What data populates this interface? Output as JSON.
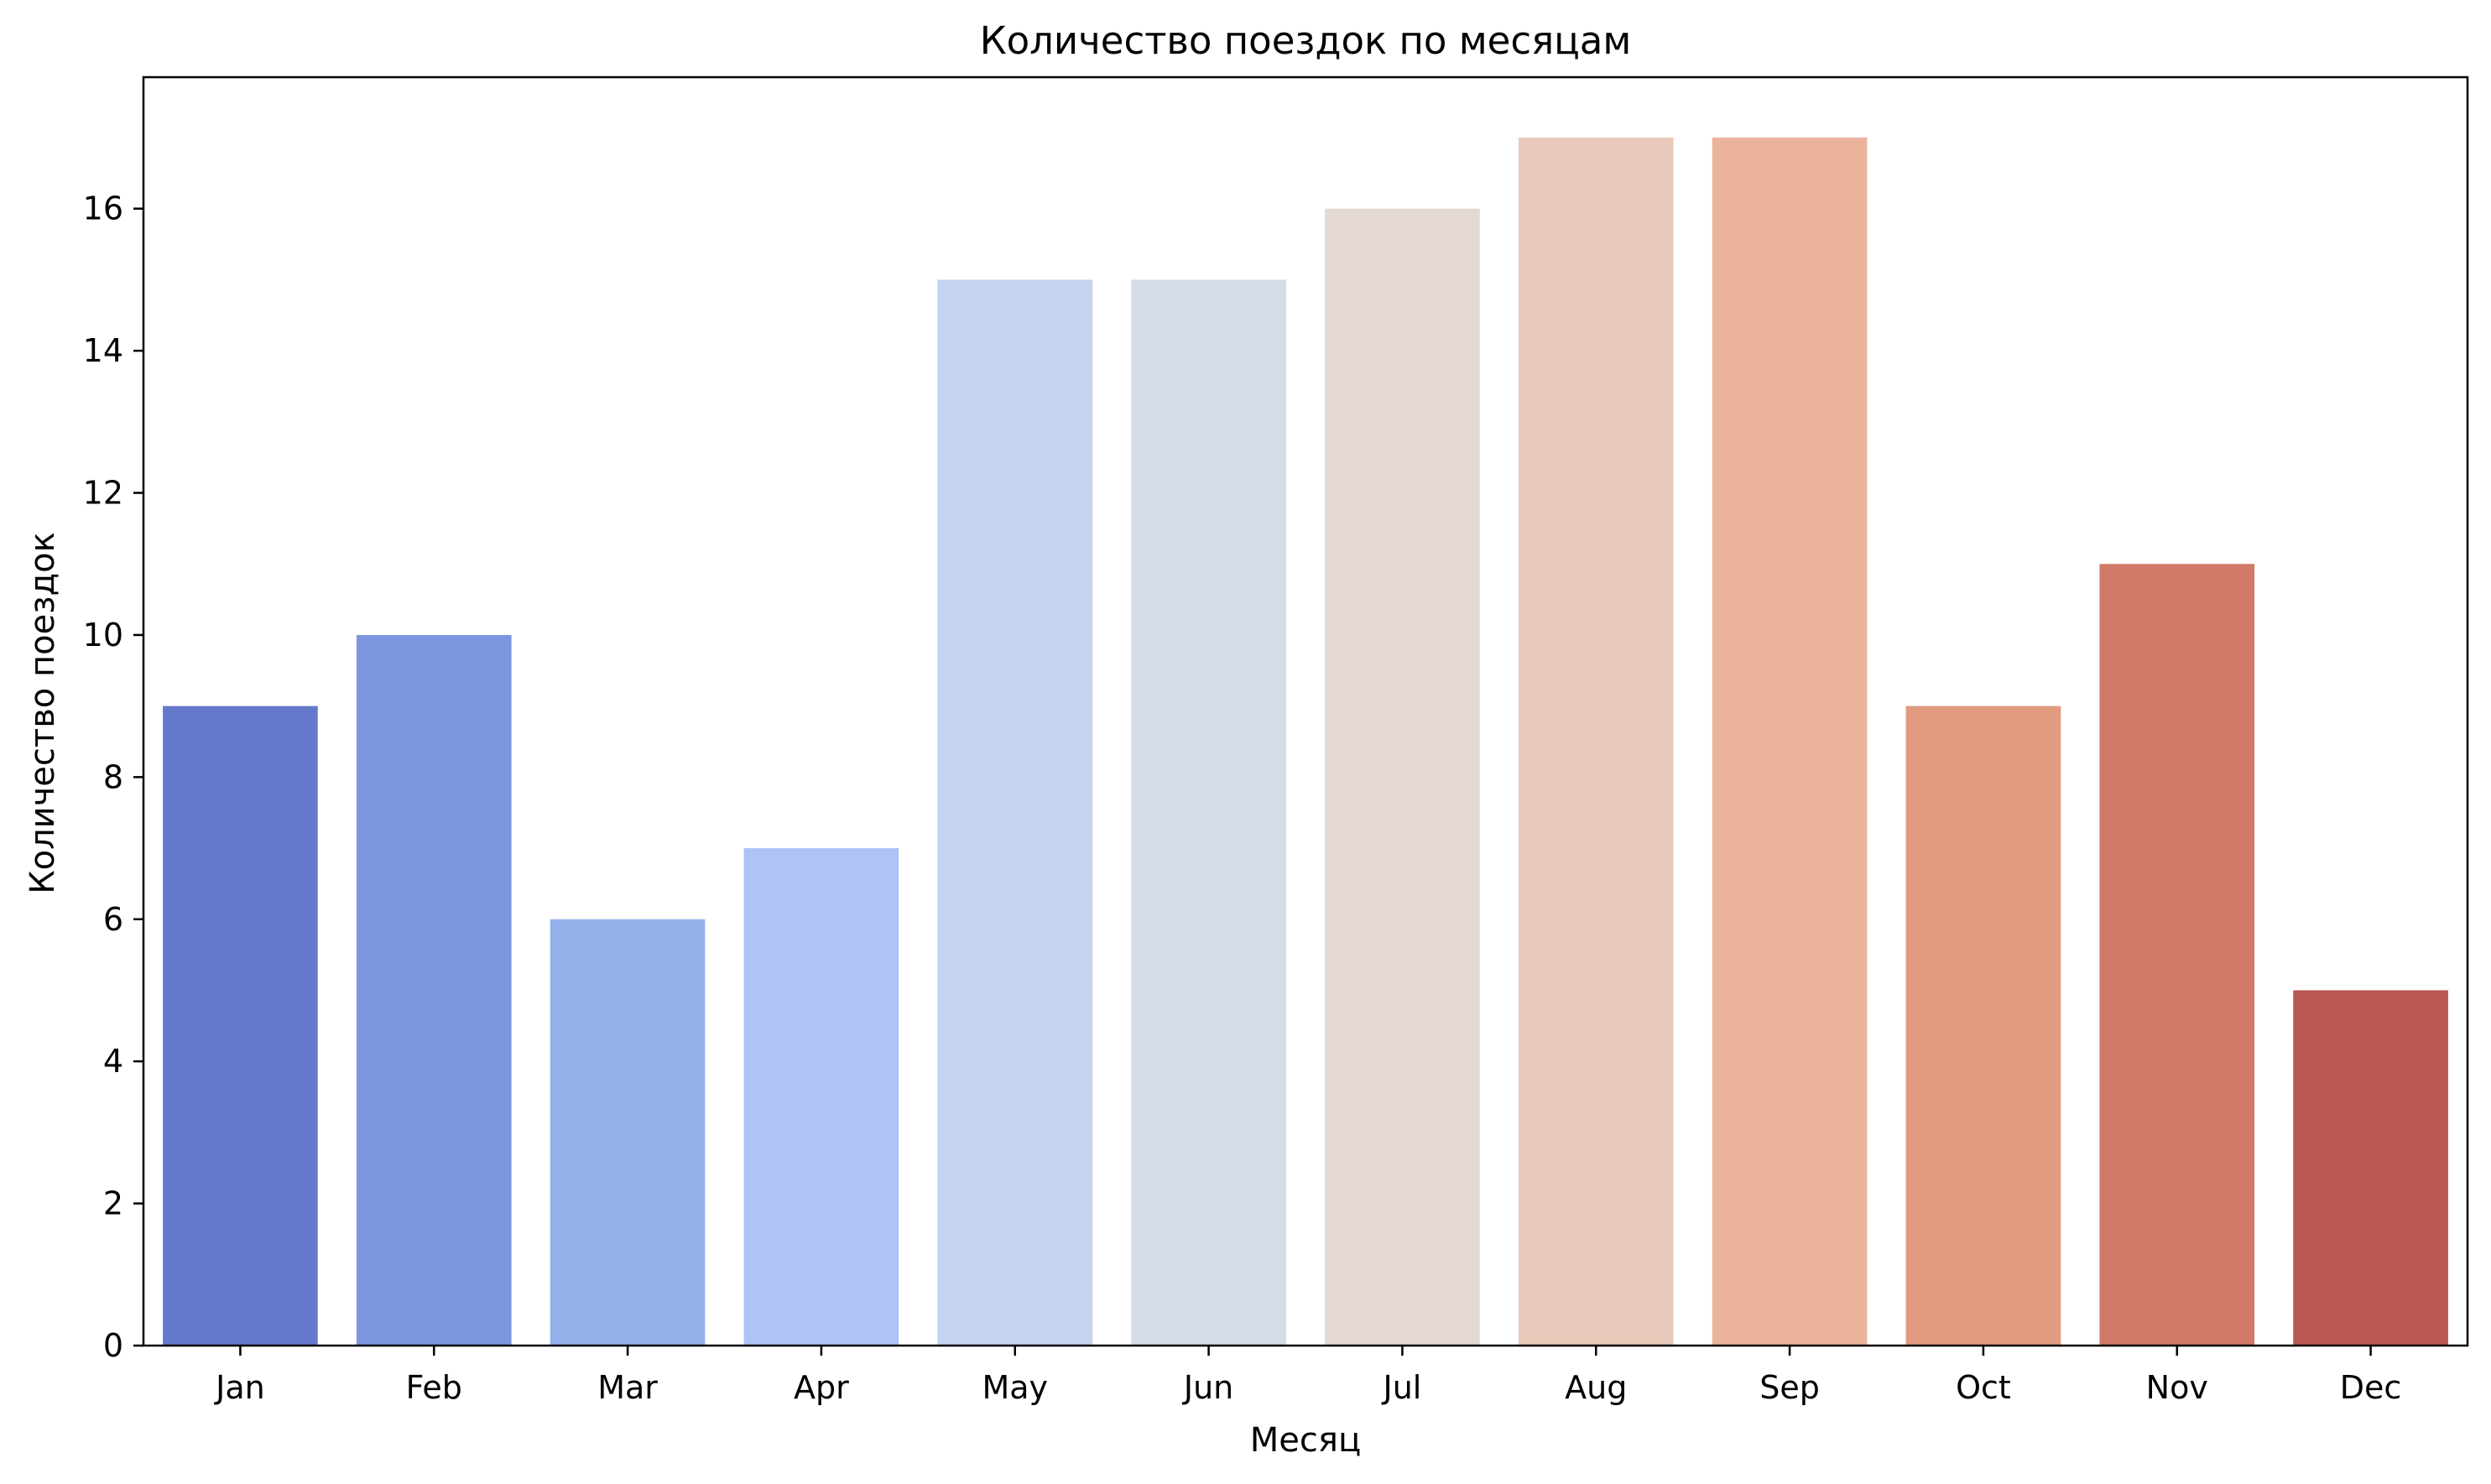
{
  "chart_data": {
    "type": "bar",
    "title": "Количество поездок по месяцам",
    "xlabel": "Месяц",
    "ylabel": "Количество поездок",
    "categories": [
      "Jan",
      "Feb",
      "Mar",
      "Apr",
      "May",
      "Jun",
      "Jul",
      "Aug",
      "Sep",
      "Oct",
      "Nov",
      "Dec"
    ],
    "values": [
      9,
      10,
      6,
      7,
      15,
      15,
      16,
      17,
      17,
      9,
      11,
      5
    ],
    "colors": [
      "#6579cc",
      "#7c96e0",
      "#96b0ec",
      "#adc4f5",
      "#c4d3f0",
      "#d5dce6",
      "#e3d8d3",
      "#e9c9b9",
      "#ebb29c",
      "#e29a81",
      "#d27a69",
      "#ba5750"
    ],
    "yticks": [
      0,
      2,
      4,
      6,
      8,
      10,
      12,
      14,
      16
    ],
    "ylim": [
      0,
      17.85
    ],
    "grid": false,
    "legend": "none"
  }
}
